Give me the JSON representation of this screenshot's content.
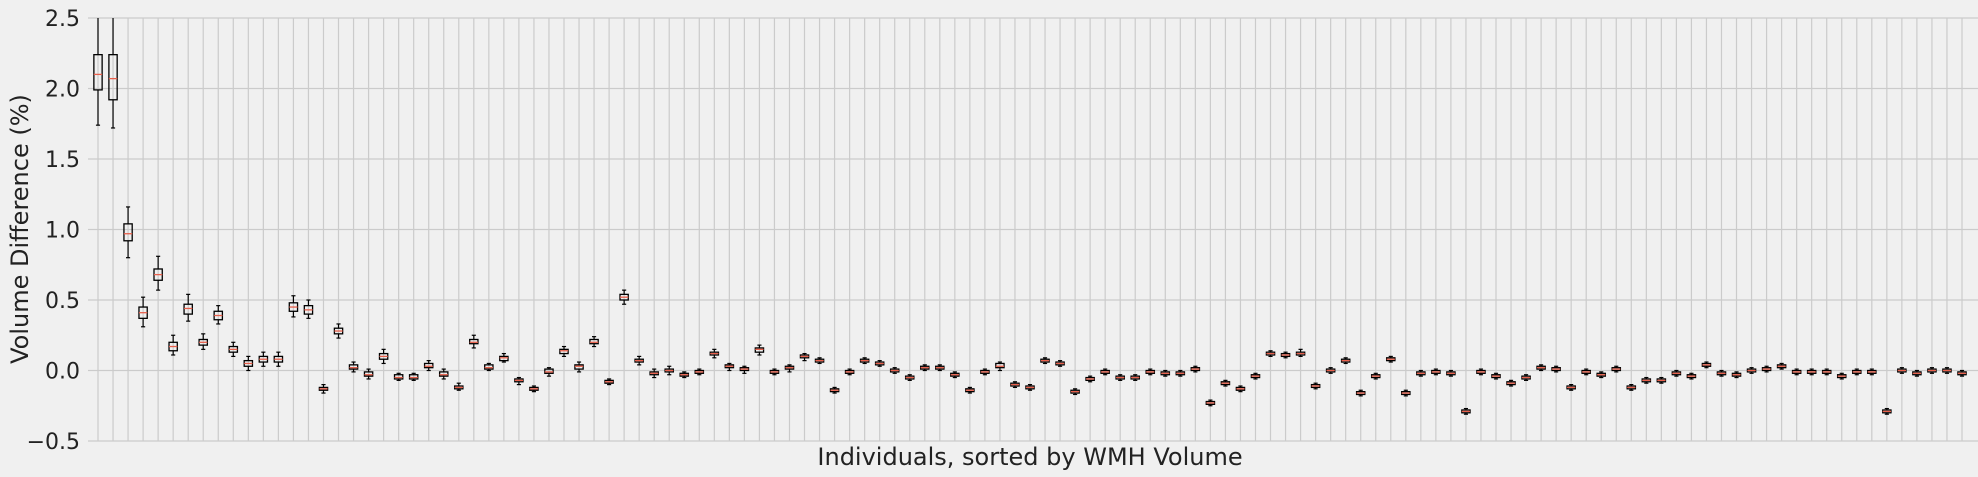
{
  "chart_data": {
    "type": "boxplot",
    "title": "",
    "xlabel": "Individuals, sorted by WMH Volume",
    "ylabel": "Volume Difference (%)",
    "ylim": [
      -0.5,
      2.5
    ],
    "yticks": [
      -0.5,
      0.0,
      0.5,
      1.0,
      1.5,
      2.0,
      2.5
    ],
    "ytick_labels": [
      "−0.5",
      "0.0",
      "0.5",
      "1.0",
      "1.5",
      "2.0",
      "2.5"
    ],
    "grid": true,
    "median_color": "#e8604c",
    "box_color": "#000000",
    "series": [
      {
        "q1": 1.99,
        "median": 2.1,
        "q3": 2.24,
        "whislo": 1.74,
        "whishi": 2.55
      },
      {
        "q1": 1.92,
        "median": 2.07,
        "q3": 2.24,
        "whislo": 1.72,
        "whishi": 2.55
      },
      {
        "q1": 0.92,
        "median": 0.97,
        "q3": 1.04,
        "whislo": 0.8,
        "whishi": 1.16
      },
      {
        "q1": 0.37,
        "median": 0.41,
        "q3": 0.45,
        "whislo": 0.31,
        "whishi": 0.52
      },
      {
        "q1": 0.64,
        "median": 0.68,
        "q3": 0.72,
        "whislo": 0.57,
        "whishi": 0.81
      },
      {
        "q1": 0.14,
        "median": 0.17,
        "q3": 0.2,
        "whislo": 0.11,
        "whishi": 0.25
      },
      {
        "q1": 0.4,
        "median": 0.44,
        "q3": 0.47,
        "whislo": 0.35,
        "whishi": 0.54
      },
      {
        "q1": 0.18,
        "median": 0.2,
        "q3": 0.22,
        "whislo": 0.15,
        "whishi": 0.26
      },
      {
        "q1": 0.36,
        "median": 0.39,
        "q3": 0.42,
        "whislo": 0.33,
        "whishi": 0.46
      },
      {
        "q1": 0.13,
        "median": 0.15,
        "q3": 0.17,
        "whislo": 0.1,
        "whishi": 0.2
      },
      {
        "q1": 0.03,
        "median": 0.05,
        "q3": 0.07,
        "whislo": 0.0,
        "whishi": 0.1
      },
      {
        "q1": 0.06,
        "median": 0.08,
        "q3": 0.1,
        "whislo": 0.03,
        "whishi": 0.13
      },
      {
        "q1": 0.06,
        "median": 0.08,
        "q3": 0.1,
        "whislo": 0.03,
        "whishi": 0.13
      },
      {
        "q1": 0.42,
        "median": 0.45,
        "q3": 0.48,
        "whislo": 0.38,
        "whishi": 0.53
      },
      {
        "q1": 0.4,
        "median": 0.43,
        "q3": 0.46,
        "whislo": 0.37,
        "whishi": 0.5
      },
      {
        "q1": -0.14,
        "median": -0.13,
        "q3": -0.12,
        "whislo": -0.16,
        "whishi": -0.1
      },
      {
        "q1": 0.26,
        "median": 0.28,
        "q3": 0.3,
        "whislo": 0.23,
        "whishi": 0.33
      },
      {
        "q1": 0.01,
        "median": 0.02,
        "q3": 0.04,
        "whislo": -0.01,
        "whishi": 0.06
      },
      {
        "q1": -0.04,
        "median": -0.03,
        "q3": -0.01,
        "whislo": -0.06,
        "whishi": 0.01
      },
      {
        "q1": 0.08,
        "median": 0.1,
        "q3": 0.12,
        "whislo": 0.05,
        "whishi": 0.15
      },
      {
        "q1": -0.06,
        "median": -0.05,
        "q3": -0.03,
        "whislo": -0.07,
        "whishi": -0.02
      },
      {
        "q1": -0.06,
        "median": -0.05,
        "q3": -0.03,
        "whislo": -0.07,
        "whishi": -0.02
      },
      {
        "q1": 0.02,
        "median": 0.03,
        "q3": 0.05,
        "whislo": 0.0,
        "whishi": 0.07
      },
      {
        "q1": -0.04,
        "median": -0.03,
        "q3": -0.01,
        "whislo": -0.06,
        "whishi": 0.01
      },
      {
        "q1": -0.13,
        "median": -0.12,
        "q3": -0.11,
        "whislo": -0.14,
        "whishi": -0.09
      },
      {
        "q1": 0.19,
        "median": 0.2,
        "q3": 0.22,
        "whislo": 0.16,
        "whishi": 0.25
      },
      {
        "q1": 0.01,
        "median": 0.02,
        "q3": 0.04,
        "whislo": 0.0,
        "whishi": 0.05
      },
      {
        "q1": 0.07,
        "median": 0.09,
        "q3": 0.1,
        "whislo": 0.06,
        "whishi": 0.12
      },
      {
        "q1": -0.08,
        "median": -0.07,
        "q3": -0.06,
        "whislo": -0.1,
        "whishi": -0.05
      },
      {
        "q1": -0.14,
        "median": -0.13,
        "q3": -0.12,
        "whislo": -0.15,
        "whishi": -0.11
      },
      {
        "q1": -0.02,
        "median": -0.01,
        "q3": 0.01,
        "whislo": -0.04,
        "whishi": 0.02
      },
      {
        "q1": 0.12,
        "median": 0.14,
        "q3": 0.15,
        "whislo": 0.1,
        "whishi": 0.17
      },
      {
        "q1": 0.01,
        "median": 0.03,
        "q3": 0.04,
        "whislo": -0.01,
        "whishi": 0.06
      },
      {
        "q1": 0.19,
        "median": 0.2,
        "q3": 0.22,
        "whislo": 0.17,
        "whishi": 0.24
      },
      {
        "q1": -0.09,
        "median": -0.08,
        "q3": -0.07,
        "whislo": -0.1,
        "whishi": -0.06
      },
      {
        "q1": 0.5,
        "median": 0.52,
        "q3": 0.54,
        "whislo": 0.47,
        "whishi": 0.57
      },
      {
        "q1": 0.06,
        "median": 0.07,
        "q3": 0.08,
        "whislo": 0.04,
        "whishi": 0.1
      },
      {
        "q1": -0.03,
        "median": -0.02,
        "q3": -0.01,
        "whislo": -0.05,
        "whishi": 0.01
      },
      {
        "q1": -0.01,
        "median": 0.0,
        "q3": 0.01,
        "whislo": -0.03,
        "whishi": 0.03
      },
      {
        "q1": -0.04,
        "median": -0.03,
        "q3": -0.02,
        "whislo": -0.05,
        "whishi": -0.01
      },
      {
        "q1": -0.02,
        "median": -0.01,
        "q3": 0.0,
        "whislo": -0.03,
        "whishi": 0.01
      },
      {
        "q1": 0.11,
        "median": 0.12,
        "q3": 0.13,
        "whislo": 0.09,
        "whishi": 0.15
      },
      {
        "q1": 0.02,
        "median": 0.03,
        "q3": 0.04,
        "whislo": 0.0,
        "whishi": 0.05
      },
      {
        "q1": 0.0,
        "median": 0.01,
        "q3": 0.02,
        "whislo": -0.02,
        "whishi": 0.03
      },
      {
        "q1": 0.13,
        "median": 0.15,
        "q3": 0.16,
        "whislo": 0.11,
        "whishi": 0.18
      },
      {
        "q1": -0.02,
        "median": -0.01,
        "q3": 0.0,
        "whislo": -0.03,
        "whishi": 0.01
      },
      {
        "q1": 0.01,
        "median": 0.02,
        "q3": 0.03,
        "whislo": -0.01,
        "whishi": 0.04
      },
      {
        "q1": 0.09,
        "median": 0.1,
        "q3": 0.11,
        "whislo": 0.07,
        "whishi": 0.12
      },
      {
        "q1": 0.06,
        "median": 0.07,
        "q3": 0.08,
        "whislo": 0.05,
        "whishi": 0.09
      },
      {
        "q1": -0.15,
        "median": -0.14,
        "q3": -0.13,
        "whislo": -0.16,
        "whishi": -0.12
      },
      {
        "q1": -0.02,
        "median": -0.01,
        "q3": 0.0,
        "whislo": -0.03,
        "whishi": 0.01
      },
      {
        "q1": 0.06,
        "median": 0.07,
        "q3": 0.08,
        "whislo": 0.05,
        "whishi": 0.09
      },
      {
        "q1": 0.04,
        "median": 0.05,
        "q3": 0.06,
        "whislo": 0.03,
        "whishi": 0.07
      },
      {
        "q1": -0.01,
        "median": 0.0,
        "q3": 0.01,
        "whislo": -0.02,
        "whishi": 0.02
      },
      {
        "q1": -0.06,
        "median": -0.05,
        "q3": -0.04,
        "whislo": -0.07,
        "whishi": -0.03
      },
      {
        "q1": 0.01,
        "median": 0.02,
        "q3": 0.03,
        "whislo": 0.0,
        "whishi": 0.04
      },
      {
        "q1": 0.01,
        "median": 0.02,
        "q3": 0.03,
        "whislo": 0.0,
        "whishi": 0.04
      },
      {
        "q1": -0.04,
        "median": -0.03,
        "q3": -0.02,
        "whislo": -0.05,
        "whishi": -0.01
      },
      {
        "q1": -0.15,
        "median": -0.14,
        "q3": -0.13,
        "whislo": -0.16,
        "whishi": -0.12
      },
      {
        "q1": -0.02,
        "median": -0.01,
        "q3": 0.0,
        "whislo": -0.03,
        "whishi": 0.01
      },
      {
        "q1": 0.02,
        "median": 0.03,
        "q3": 0.05,
        "whislo": 0.0,
        "whishi": 0.06
      },
      {
        "q1": -0.11,
        "median": -0.1,
        "q3": -0.09,
        "whislo": -0.12,
        "whishi": -0.08
      },
      {
        "q1": -0.13,
        "median": -0.12,
        "q3": -0.11,
        "whislo": -0.14,
        "whishi": -0.1
      },
      {
        "q1": 0.06,
        "median": 0.07,
        "q3": 0.08,
        "whislo": 0.05,
        "whishi": 0.09
      },
      {
        "q1": 0.04,
        "median": 0.05,
        "q3": 0.06,
        "whislo": 0.03,
        "whishi": 0.07
      },
      {
        "q1": -0.16,
        "median": -0.15,
        "q3": -0.14,
        "whislo": -0.17,
        "whishi": -0.13
      },
      {
        "q1": -0.07,
        "median": -0.06,
        "q3": -0.05,
        "whislo": -0.08,
        "whishi": -0.04
      },
      {
        "q1": -0.02,
        "median": -0.01,
        "q3": 0.0,
        "whislo": -0.03,
        "whishi": 0.01
      },
      {
        "q1": -0.06,
        "median": -0.05,
        "q3": -0.04,
        "whislo": -0.07,
        "whishi": -0.03
      },
      {
        "q1": -0.06,
        "median": -0.05,
        "q3": -0.04,
        "whislo": -0.07,
        "whishi": -0.03
      },
      {
        "q1": -0.02,
        "median": -0.01,
        "q3": 0.0,
        "whislo": -0.03,
        "whishi": 0.01
      },
      {
        "q1": -0.03,
        "median": -0.02,
        "q3": -0.01,
        "whislo": -0.04,
        "whishi": 0.0
      },
      {
        "q1": -0.03,
        "median": -0.02,
        "q3": -0.01,
        "whislo": -0.04,
        "whishi": 0.0
      },
      {
        "q1": 0.0,
        "median": 0.01,
        "q3": 0.02,
        "whislo": -0.01,
        "whishi": 0.03
      },
      {
        "q1": -0.24,
        "median": -0.23,
        "q3": -0.22,
        "whislo": -0.25,
        "whishi": -0.21
      },
      {
        "q1": -0.1,
        "median": -0.09,
        "q3": -0.08,
        "whislo": -0.11,
        "whishi": -0.07
      },
      {
        "q1": -0.14,
        "median": -0.13,
        "q3": -0.12,
        "whislo": -0.15,
        "whishi": -0.11
      },
      {
        "q1": -0.05,
        "median": -0.04,
        "q3": -0.03,
        "whislo": -0.06,
        "whishi": -0.02
      },
      {
        "q1": 0.11,
        "median": 0.12,
        "q3": 0.13,
        "whislo": 0.1,
        "whishi": 0.14
      },
      {
        "q1": 0.1,
        "median": 0.11,
        "q3": 0.12,
        "whislo": 0.09,
        "whishi": 0.13
      },
      {
        "q1": 0.11,
        "median": 0.12,
        "q3": 0.13,
        "whislo": 0.1,
        "whishi": 0.15
      },
      {
        "q1": -0.12,
        "median": -0.11,
        "q3": -0.1,
        "whislo": -0.13,
        "whishi": -0.09
      },
      {
        "q1": -0.01,
        "median": 0.0,
        "q3": 0.01,
        "whislo": -0.02,
        "whishi": 0.02
      },
      {
        "q1": 0.06,
        "median": 0.07,
        "q3": 0.08,
        "whislo": 0.05,
        "whishi": 0.09
      },
      {
        "q1": -0.17,
        "median": -0.16,
        "q3": -0.15,
        "whislo": -0.18,
        "whishi": -0.14
      },
      {
        "q1": -0.05,
        "median": -0.04,
        "q3": -0.03,
        "whislo": -0.06,
        "whishi": -0.02
      },
      {
        "q1": 0.07,
        "median": 0.08,
        "q3": 0.09,
        "whislo": 0.06,
        "whishi": 0.1
      },
      {
        "q1": -0.17,
        "median": -0.16,
        "q3": -0.15,
        "whislo": -0.18,
        "whishi": -0.14
      },
      {
        "q1": -0.03,
        "median": -0.02,
        "q3": -0.01,
        "whislo": -0.04,
        "whishi": 0.0
      },
      {
        "q1": -0.02,
        "median": -0.01,
        "q3": 0.0,
        "whislo": -0.03,
        "whishi": 0.01
      },
      {
        "q1": -0.03,
        "median": -0.02,
        "q3": -0.01,
        "whislo": -0.04,
        "whishi": 0.0
      },
      {
        "q1": -0.3,
        "median": -0.29,
        "q3": -0.28,
        "whislo": -0.31,
        "whishi": -0.27
      },
      {
        "q1": -0.02,
        "median": -0.01,
        "q3": 0.0,
        "whislo": -0.03,
        "whishi": 0.01
      },
      {
        "q1": -0.05,
        "median": -0.04,
        "q3": -0.03,
        "whislo": -0.06,
        "whishi": -0.02
      },
      {
        "q1": -0.1,
        "median": -0.09,
        "q3": -0.08,
        "whislo": -0.11,
        "whishi": -0.07
      },
      {
        "q1": -0.06,
        "median": -0.05,
        "q3": -0.04,
        "whislo": -0.07,
        "whishi": -0.03
      },
      {
        "q1": 0.01,
        "median": 0.02,
        "q3": 0.03,
        "whislo": 0.0,
        "whishi": 0.04
      },
      {
        "q1": 0.0,
        "median": 0.01,
        "q3": 0.02,
        "whislo": -0.01,
        "whishi": 0.03
      },
      {
        "q1": -0.13,
        "median": -0.12,
        "q3": -0.11,
        "whislo": -0.14,
        "whishi": -0.1
      },
      {
        "q1": -0.02,
        "median": -0.01,
        "q3": 0.0,
        "whislo": -0.03,
        "whishi": 0.01
      },
      {
        "q1": -0.04,
        "median": -0.03,
        "q3": -0.02,
        "whislo": -0.05,
        "whishi": -0.01
      },
      {
        "q1": 0.0,
        "median": 0.01,
        "q3": 0.02,
        "whislo": -0.01,
        "whishi": 0.03
      },
      {
        "q1": -0.13,
        "median": -0.12,
        "q3": -0.11,
        "whislo": -0.14,
        "whishi": -0.1
      },
      {
        "q1": -0.08,
        "median": -0.07,
        "q3": -0.06,
        "whislo": -0.09,
        "whishi": -0.05
      },
      {
        "q1": -0.08,
        "median": -0.07,
        "q3": -0.06,
        "whislo": -0.09,
        "whishi": -0.05
      },
      {
        "q1": -0.03,
        "median": -0.02,
        "q3": -0.01,
        "whislo": -0.04,
        "whishi": 0.0
      },
      {
        "q1": -0.05,
        "median": -0.04,
        "q3": -0.03,
        "whislo": -0.06,
        "whishi": -0.02
      },
      {
        "q1": 0.03,
        "median": 0.04,
        "q3": 0.05,
        "whislo": 0.02,
        "whishi": 0.06
      },
      {
        "q1": -0.03,
        "median": -0.02,
        "q3": -0.01,
        "whislo": -0.04,
        "whishi": 0.0
      },
      {
        "q1": -0.04,
        "median": -0.03,
        "q3": -0.02,
        "whislo": -0.05,
        "whishi": -0.01
      },
      {
        "q1": -0.01,
        "median": 0.0,
        "q3": 0.01,
        "whislo": -0.02,
        "whishi": 0.02
      },
      {
        "q1": 0.0,
        "median": 0.01,
        "q3": 0.02,
        "whislo": -0.01,
        "whishi": 0.03
      },
      {
        "q1": 0.02,
        "median": 0.03,
        "q3": 0.04,
        "whislo": 0.01,
        "whishi": 0.05
      },
      {
        "q1": -0.02,
        "median": -0.01,
        "q3": 0.0,
        "whislo": -0.03,
        "whishi": 0.01
      },
      {
        "q1": -0.02,
        "median": -0.01,
        "q3": 0.0,
        "whislo": -0.03,
        "whishi": 0.01
      },
      {
        "q1": -0.02,
        "median": -0.01,
        "q3": 0.0,
        "whislo": -0.03,
        "whishi": 0.01
      },
      {
        "q1": -0.05,
        "median": -0.04,
        "q3": -0.03,
        "whislo": -0.06,
        "whishi": -0.02
      },
      {
        "q1": -0.02,
        "median": -0.01,
        "q3": 0.0,
        "whislo": -0.03,
        "whishi": 0.01
      },
      {
        "q1": -0.02,
        "median": -0.01,
        "q3": 0.0,
        "whislo": -0.03,
        "whishi": 0.01
      },
      {
        "q1": -0.3,
        "median": -0.29,
        "q3": -0.28,
        "whislo": -0.31,
        "whishi": -0.27
      },
      {
        "q1": -0.01,
        "median": 0.0,
        "q3": 0.01,
        "whislo": -0.02,
        "whishi": 0.02
      },
      {
        "q1": -0.03,
        "median": -0.02,
        "q3": -0.01,
        "whislo": -0.04,
        "whishi": 0.0
      },
      {
        "q1": -0.01,
        "median": 0.0,
        "q3": 0.01,
        "whislo": -0.02,
        "whishi": 0.02
      },
      {
        "q1": -0.01,
        "median": 0.0,
        "q3": 0.01,
        "whislo": -0.02,
        "whishi": 0.02
      },
      {
        "q1": -0.03,
        "median": -0.02,
        "q3": -0.01,
        "whislo": -0.04,
        "whishi": 0.0
      }
    ]
  }
}
